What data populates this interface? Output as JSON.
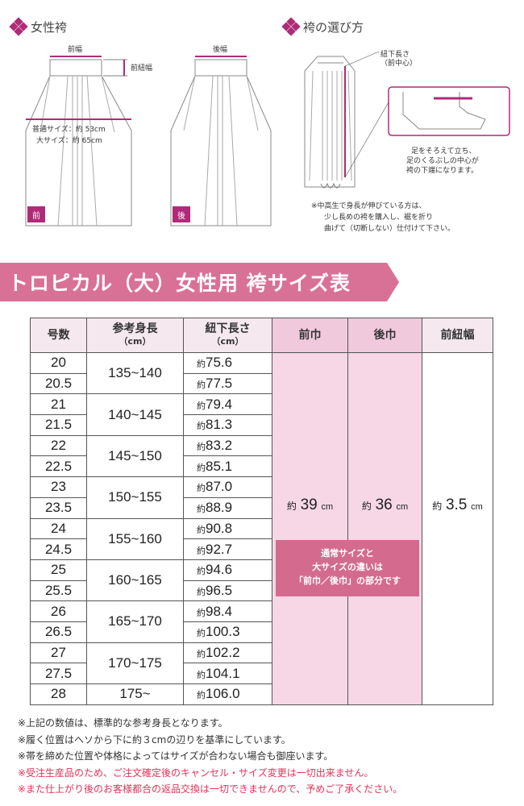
{
  "section1": {
    "title": "女性袴"
  },
  "section2": {
    "title": "袴の選び方"
  },
  "front_fig": {
    "width_label": "前幅",
    "himo_label": "前紐幅",
    "size_line1": "普通サイズ：約 53cm",
    "size_line2": "大サイズ：約 65cm",
    "tag": "前"
  },
  "back_fig": {
    "width_label": "後幅",
    "tag": "後"
  },
  "choose_fig": {
    "himo_label1": "紐下長さ",
    "himo_label2": "（前中心）",
    "foot_caption1": "足をそろえて立ち、",
    "foot_caption2": "足のくるぶしの中心が",
    "foot_caption3": "袴の下端になります。",
    "note1": "※中高生で身長が伸びている方は、",
    "note2": "少し長めの袴を購入し、裾を折り",
    "note3": "曲げて（切断しない）仕付けて下さい。"
  },
  "banner": {
    "title": "トロピカル（大）女性用 袴サイズ表"
  },
  "table": {
    "headers": {
      "num": "号数",
      "height": "参考身長",
      "height_unit": "（cm）",
      "length": "紐下長さ",
      "length_unit": "（cm）",
      "front": "前巾",
      "back": "後巾",
      "himo": "前紐幅"
    },
    "yaku": "約",
    "rows": [
      {
        "num": "20",
        "length": "75.6"
      },
      {
        "num": "20.5",
        "length": "77.5"
      },
      {
        "num": "21",
        "length": "79.4"
      },
      {
        "num": "21.5",
        "length": "81.3"
      },
      {
        "num": "22",
        "length": "83.2"
      },
      {
        "num": "22.5",
        "length": "85.1"
      },
      {
        "num": "23",
        "length": "87.0"
      },
      {
        "num": "23.5",
        "length": "88.9"
      },
      {
        "num": "24",
        "length": "90.8"
      },
      {
        "num": "24.5",
        "length": "92.7"
      },
      {
        "num": "25",
        "length": "94.6"
      },
      {
        "num": "25.5",
        "length": "96.5"
      },
      {
        "num": "26",
        "length": "98.4"
      },
      {
        "num": "26.5",
        "length": "100.3"
      },
      {
        "num": "27",
        "length": "102.2"
      },
      {
        "num": "27.5",
        "length": "104.1"
      },
      {
        "num": "28",
        "length": "106.0"
      }
    ],
    "heights": [
      "135~140",
      "140~145",
      "145~150",
      "150~155",
      "155~160",
      "160~165",
      "165~170",
      "170~175",
      "175~"
    ],
    "front_value": "39",
    "back_value": "36",
    "himo_value": "3.5",
    "unit": "cm",
    "pink_note1": "通常サイズと",
    "pink_note2": "大サイズの違いは",
    "pink_note3": "「前巾／後巾」の部分です"
  },
  "notes": [
    "※上記の数値は、標準的な参考身長となります。",
    "※履く位置はヘソから下に約３cmの辺りを基準にしています。",
    "※帯を締めた位置や体格によってはサイズが合わない場合も御座います。"
  ],
  "red_notes": [
    "※受注生産品のため、ご注文確定後のキャンセル・サイズ変更は一切出来ません。",
    "※また仕上がり後のお客様都合の返品交換は一切できませんので、予めご了承ください。"
  ],
  "colors": {
    "accent": "#b02a78",
    "banner": "#d97196",
    "pink_col": "#f7d7e6",
    "red_text": "#e2325a"
  }
}
